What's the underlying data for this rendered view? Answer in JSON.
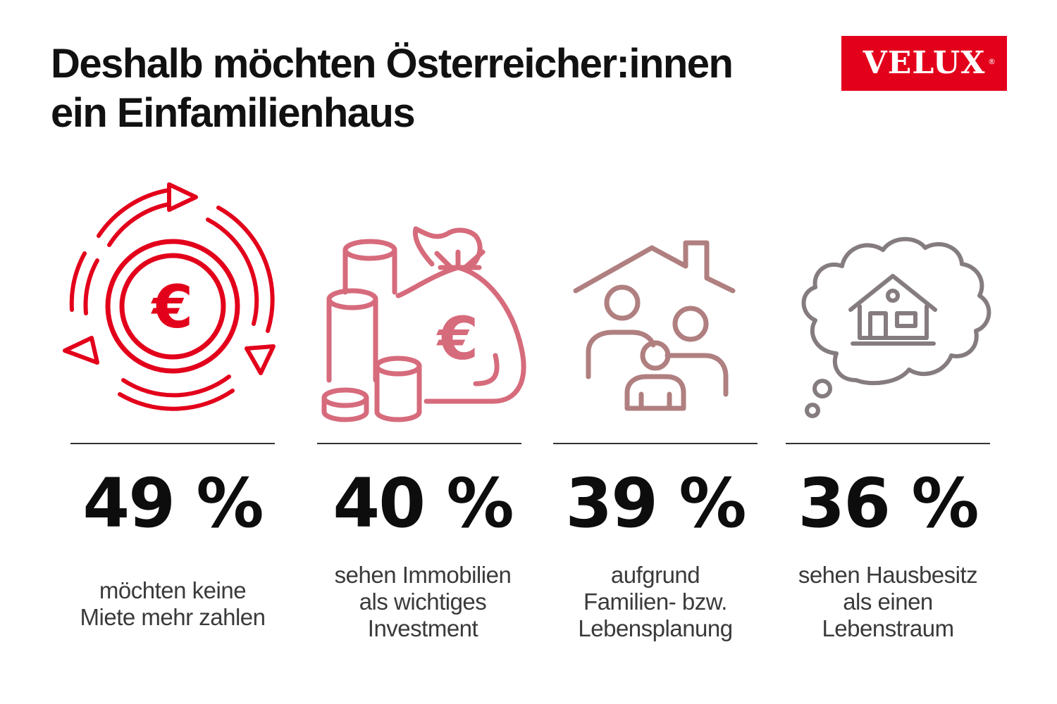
{
  "title": {
    "line1": "Deshalb möchten Österreicher:innen",
    "line2": "ein Einfamilienhaus"
  },
  "logo": {
    "text": "VELUX",
    "registered": "®",
    "color": "#e3001b"
  },
  "stats": [
    {
      "icon": "euro-cycle-icon",
      "value": "49 %",
      "label": [
        "möchten keine",
        "Miete mehr zahlen"
      ],
      "color": "#e3001b"
    },
    {
      "icon": "money-bag-coins-icon",
      "value": "40 %",
      "label": [
        "sehen Immobilien",
        "als wichtiges",
        "Investment"
      ],
      "color": "#d66b7c"
    },
    {
      "icon": "family-house-icon",
      "value": "39 %",
      "label": [
        "aufgrund",
        "Familien- bzw.",
        "Lebensplanung"
      ],
      "color": "#b07f80"
    },
    {
      "icon": "house-dream-icon",
      "value": "36 %",
      "label": [
        "sehen Hausbesitz",
        "als einen",
        "Lebenstraum"
      ],
      "color": "#857c80"
    }
  ]
}
